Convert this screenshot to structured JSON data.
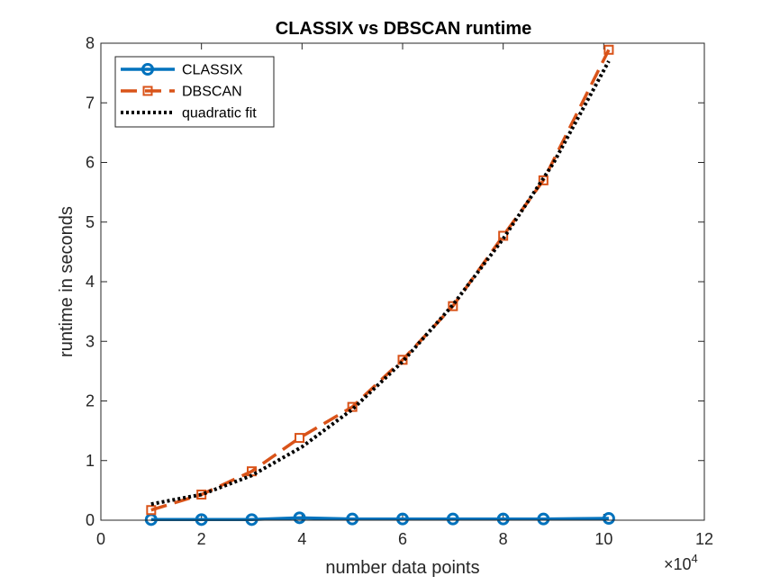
{
  "chart_data": {
    "type": "line",
    "title": "CLASSIX vs DBSCAN runtime",
    "xlabel": "number data points",
    "ylabel": "runtime in seconds",
    "x_exponent_label": "×10",
    "x_exponent_power": "4",
    "xlim": [
      0,
      12
    ],
    "ylim": [
      0,
      8
    ],
    "x_ticks": [
      "0",
      "2",
      "4",
      "6",
      "8",
      "10",
      "12"
    ],
    "y_ticks": [
      "0",
      "1",
      "2",
      "3",
      "4",
      "5",
      "6",
      "7",
      "8"
    ],
    "grid": false,
    "legend_position": "top-left",
    "x_scale_note": "x values are in units of 10^4 data points",
    "series": [
      {
        "name": "CLASSIX",
        "color": "#0072BD",
        "style": "solid-circle",
        "x": [
          1.0,
          2.0,
          3.0,
          3.95,
          5.0,
          6.0,
          7.0,
          8.0,
          8.8,
          10.1
        ],
        "y": [
          0.01,
          0.01,
          0.01,
          0.04,
          0.02,
          0.02,
          0.02,
          0.02,
          0.02,
          0.03
        ]
      },
      {
        "name": "DBSCAN",
        "color": "#D95319",
        "style": "dashed-square",
        "x": [
          1.0,
          2.0,
          3.0,
          3.95,
          5.0,
          6.0,
          7.0,
          8.0,
          8.8,
          10.1
        ],
        "y": [
          0.17,
          0.43,
          0.82,
          1.38,
          1.9,
          2.69,
          3.59,
          4.77,
          5.7,
          7.89
        ]
      },
      {
        "name": "quadratic fit",
        "color": "#000000",
        "style": "dotted",
        "x": [
          1.0,
          2.0,
          3.0,
          4.0,
          5.0,
          6.0,
          7.0,
          8.0,
          9.0,
          10.1
        ],
        "y": [
          0.27,
          0.43,
          0.75,
          1.23,
          1.86,
          2.66,
          3.61,
          4.72,
          5.99,
          7.7
        ]
      }
    ]
  }
}
